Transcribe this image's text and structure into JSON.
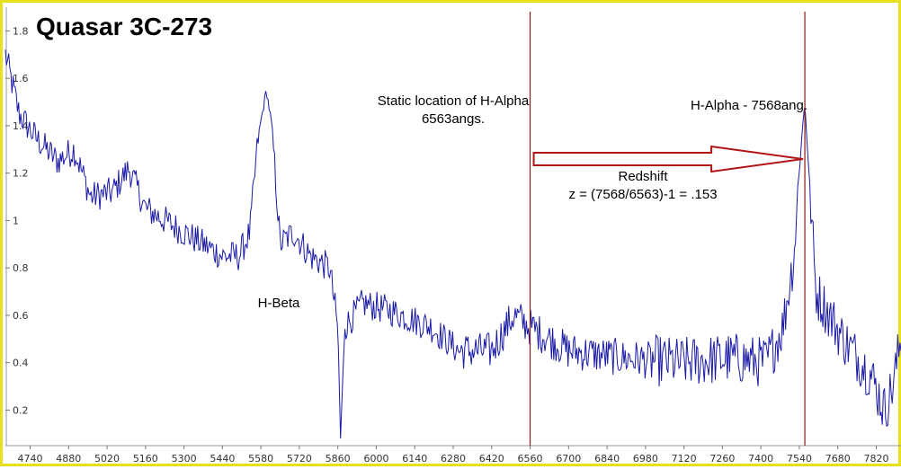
{
  "chart_data": {
    "type": "line",
    "title": "Quasar 3C-273",
    "xlabel": "",
    "ylabel": "",
    "xlim": [
      4650,
      7910
    ],
    "ylim": [
      0.05,
      1.9
    ],
    "xticks": [
      4740,
      4880,
      5020,
      5160,
      5300,
      5440,
      5580,
      5720,
      5860,
      6000,
      6140,
      6280,
      6420,
      6560,
      6700,
      6840,
      6980,
      7120,
      7260,
      7400,
      7540,
      7680,
      7820
    ],
    "yticks": [
      0.2,
      0.4,
      0.6,
      0.8,
      1,
      1.2,
      1.4,
      1.6,
      1.8
    ],
    "grid": false,
    "colors": {
      "series": "#1a1aa6",
      "marker_line": "#8b1a1a",
      "arrow": "#b01414",
      "frame": "#e8e01a"
    },
    "key_points": [
      {
        "x": 4650,
        "y": 1.7
      },
      {
        "x": 4700,
        "y": 1.45
      },
      {
        "x": 4760,
        "y": 1.35
      },
      {
        "x": 4840,
        "y": 1.25
      },
      {
        "x": 4900,
        "y": 1.3
      },
      {
        "x": 4960,
        "y": 1.1
      },
      {
        "x": 5040,
        "y": 1.12
      },
      {
        "x": 5100,
        "y": 1.22
      },
      {
        "x": 5160,
        "y": 1.05
      },
      {
        "x": 5300,
        "y": 0.95
      },
      {
        "x": 5440,
        "y": 0.85
      },
      {
        "x": 5500,
        "y": 0.85
      },
      {
        "x": 5540,
        "y": 0.95
      },
      {
        "x": 5570,
        "y": 1.35
      },
      {
        "x": 5600,
        "y": 1.55
      },
      {
        "x": 5620,
        "y": 1.4
      },
      {
        "x": 5650,
        "y": 0.9
      },
      {
        "x": 5700,
        "y": 0.95
      },
      {
        "x": 5760,
        "y": 0.85
      },
      {
        "x": 5830,
        "y": 0.8
      },
      {
        "x": 5860,
        "y": 0.55
      },
      {
        "x": 5870,
        "y": 0.08
      },
      {
        "x": 5885,
        "y": 0.55
      },
      {
        "x": 5950,
        "y": 0.65
      },
      {
        "x": 6050,
        "y": 0.62
      },
      {
        "x": 6200,
        "y": 0.55
      },
      {
        "x": 6300,
        "y": 0.45
      },
      {
        "x": 6420,
        "y": 0.45
      },
      {
        "x": 6500,
        "y": 0.6
      },
      {
        "x": 6560,
        "y": 0.55
      },
      {
        "x": 6700,
        "y": 0.45
      },
      {
        "x": 6900,
        "y": 0.42
      },
      {
        "x": 7100,
        "y": 0.4
      },
      {
        "x": 7300,
        "y": 0.42
      },
      {
        "x": 7420,
        "y": 0.4
      },
      {
        "x": 7480,
        "y": 0.55
      },
      {
        "x": 7520,
        "y": 0.85
      },
      {
        "x": 7545,
        "y": 1.3
      },
      {
        "x": 7560,
        "y": 1.5
      },
      {
        "x": 7575,
        "y": 1.2
      },
      {
        "x": 7600,
        "y": 0.7
      },
      {
        "x": 7700,
        "y": 0.5
      },
      {
        "x": 7800,
        "y": 0.35
      },
      {
        "x": 7850,
        "y": 0.2
      },
      {
        "x": 7880,
        "y": 0.3
      },
      {
        "x": 7910,
        "y": 0.5
      }
    ],
    "markers": [
      {
        "x": 6560,
        "label_lines": [
          "Static location of H-Alpha",
          "6563angs."
        ]
      },
      {
        "x": 7560,
        "label_lines": [
          "H-Alpha - 7568ang."
        ]
      }
    ],
    "annotations": {
      "h_beta": "H-Beta",
      "redshift_title": "Redshift",
      "redshift_formula": "z = (7568/6563)-1 = .153"
    }
  }
}
